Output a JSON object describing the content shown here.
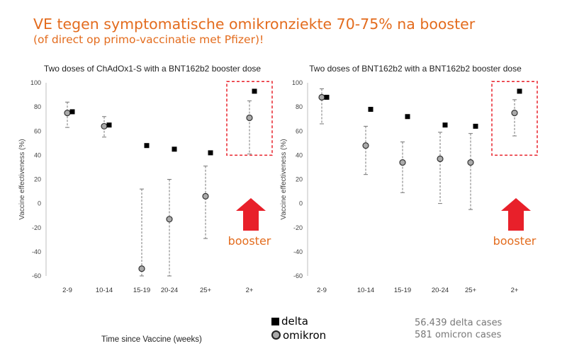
{
  "slide": {
    "title": "VE tegen symptomatische omikronziekte 70-75% na booster",
    "subtitle": "(of direct op primo-vaccinatie met Pfizer)!",
    "legend": {
      "delta": "delta",
      "omikron": "omikron"
    },
    "cases": {
      "delta": "56.439 delta cases",
      "omicron": "581 omicron cases"
    },
    "x_axis_title": "Time since Vaccine (weeks)",
    "booster_label": "booster",
    "colors": {
      "title": "#e36c1e",
      "highlight": "#e8202a",
      "delta_marker": "#000000",
      "omikron_marker": "#aaaaaa"
    }
  },
  "chart_data": [
    {
      "type": "scatter",
      "title": "Two doses of ChAdOx1-S with a BNT162b2 booster dose",
      "ylabel": "Vaccine effectiveness (%)",
      "ylim": [
        -60,
        100
      ],
      "yticks": [
        -60,
        -40,
        -20,
        0,
        20,
        40,
        60,
        80,
        100
      ],
      "categories": [
        "2-9",
        "10-14",
        "15-19",
        "20-24",
        "25+",
        "2+"
      ],
      "series": [
        {
          "name": "delta",
          "values": [
            76,
            65,
            48,
            45,
            42,
            93
          ]
        },
        {
          "name": "omikron",
          "values": [
            75,
            64,
            -54,
            -13,
            6,
            71
          ],
          "lower": [
            63,
            55,
            -60,
            -60,
            -29,
            41
          ],
          "upper": [
            84,
            72,
            12,
            20,
            31,
            85
          ]
        }
      ],
      "highlight_category": "2+",
      "annotation": "booster"
    },
    {
      "type": "scatter",
      "title": "Two doses of BNT162b2 with a BNT162b2 booster dose",
      "ylabel": "Vaccine effectiveness (%)",
      "ylim": [
        -60,
        100
      ],
      "yticks": [
        -60,
        -40,
        -20,
        0,
        20,
        40,
        60,
        80,
        100
      ],
      "categories": [
        "2-9",
        "10-14",
        "15-19",
        "20-24",
        "25+",
        "2+"
      ],
      "series": [
        {
          "name": "delta",
          "values": [
            88,
            78,
            72,
            65,
            64,
            93
          ]
        },
        {
          "name": "omikron",
          "values": [
            88,
            48,
            34,
            37,
            34,
            75
          ],
          "lower": [
            66,
            24,
            9,
            0,
            -5,
            56
          ],
          "upper": [
            95,
            64,
            51,
            59,
            58,
            86
          ]
        }
      ],
      "highlight_category": "2+",
      "annotation": "booster"
    }
  ]
}
